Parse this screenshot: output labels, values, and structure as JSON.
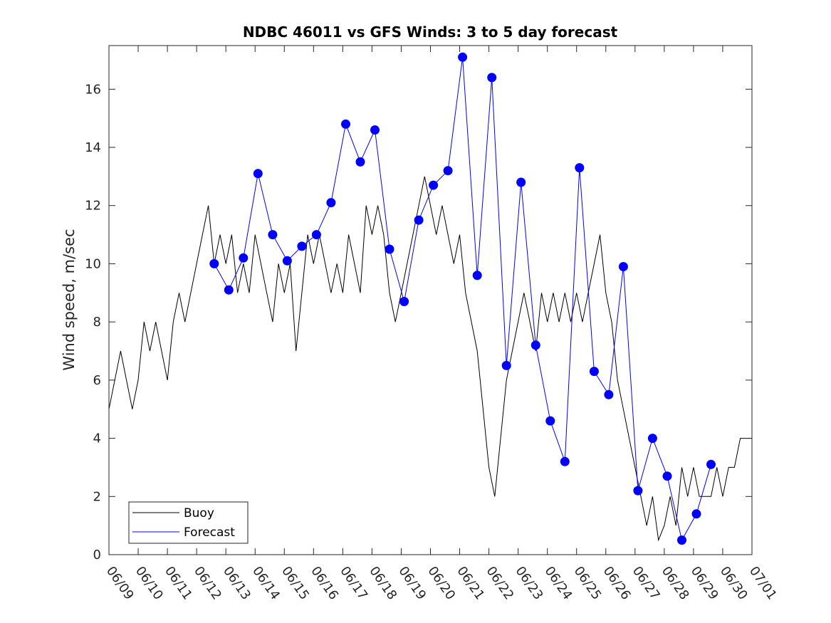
{
  "chart_data": {
    "type": "line",
    "title": "NDBC 46011 vs GFS Winds: 3 to 5 day forecast",
    "xlabel": "",
    "ylabel": "Wind speed, m/sec",
    "xlim": [
      "06/09",
      "07/01"
    ],
    "ylim": [
      0,
      17.5
    ],
    "x_ticks": [
      "06/09",
      "06/10",
      "06/11",
      "06/12",
      "06/13",
      "06/14",
      "06/15",
      "06/16",
      "06/17",
      "06/18",
      "06/19",
      "06/20",
      "06/21",
      "06/22",
      "06/23",
      "06/24",
      "06/25",
      "06/26",
      "06/27",
      "06/28",
      "06/29",
      "06/30",
      "07/01"
    ],
    "y_ticks": [
      0,
      2,
      4,
      6,
      8,
      10,
      12,
      14,
      16
    ],
    "grid": false,
    "legend": {
      "placement": "bottom-left",
      "entries": [
        "Buoy",
        "Forecast"
      ]
    },
    "colors": {
      "buoy": "#000000",
      "forecast": "#0000ff"
    },
    "series": [
      {
        "name": "Buoy",
        "x_day_offsets": [
          0.0,
          0.2,
          0.4,
          0.6,
          0.8,
          1.0,
          1.2,
          1.4,
          1.6,
          1.8,
          2.0,
          2.2,
          2.4,
          2.6,
          2.8,
          3.0,
          3.2,
          3.4,
          3.6,
          3.8,
          4.0,
          4.2,
          4.4,
          4.6,
          4.8,
          5.0,
          5.2,
          5.4,
          5.6,
          5.8,
          6.0,
          6.2,
          6.4,
          6.6,
          6.8,
          7.0,
          7.2,
          7.4,
          7.6,
          7.8,
          8.0,
          8.2,
          8.4,
          8.6,
          8.8,
          9.0,
          9.2,
          9.4,
          9.6,
          9.8,
          10.0,
          10.2,
          10.4,
          10.6,
          10.8,
          11.0,
          11.2,
          11.4,
          11.6,
          11.8,
          12.0,
          12.2,
          12.4,
          12.6,
          12.8,
          13.0,
          13.2,
          13.4,
          13.6,
          13.8,
          14.0,
          14.2,
          14.4,
          14.6,
          14.8,
          15.0,
          15.2,
          15.4,
          15.6,
          15.8,
          16.0,
          16.2,
          16.4,
          16.6,
          16.8,
          17.0,
          17.2,
          17.4,
          17.6,
          17.8,
          18.0,
          18.2,
          18.4,
          18.6,
          18.8,
          19.0,
          19.2,
          19.4,
          19.6,
          19.8,
          20.0,
          20.2,
          20.4,
          20.6,
          20.8,
          21.0,
          21.2,
          21.4,
          21.6,
          21.8,
          22.0
        ],
        "values": [
          5,
          6,
          7,
          6,
          5,
          6,
          8,
          7,
          8,
          7,
          6,
          8,
          9,
          8,
          9,
          10,
          11,
          12,
          10,
          11,
          10,
          11,
          9,
          10,
          9,
          11,
          10,
          9,
          8,
          10,
          9,
          10,
          7,
          9,
          11,
          10,
          11,
          10,
          9,
          10,
          9,
          11,
          10,
          9,
          12,
          11,
          12,
          11,
          9,
          8,
          9,
          10,
          11,
          12,
          13,
          12,
          11,
          12,
          11,
          10,
          11,
          9,
          8,
          7,
          5,
          3,
          2,
          4,
          6,
          7,
          8,
          9,
          8,
          7,
          9,
          8,
          9,
          8,
          9,
          8,
          9,
          8,
          9,
          10,
          11,
          9,
          8,
          6,
          5,
          4,
          3,
          2,
          1,
          2,
          0.5,
          1,
          2,
          1,
          3,
          2,
          3,
          2,
          2,
          2,
          3,
          2,
          3,
          3,
          4,
          4,
          4
        ]
      },
      {
        "name": "Forecast",
        "x_day_offsets": [
          3.6,
          4.1,
          4.6,
          5.1,
          5.6,
          6.1,
          6.6,
          7.1,
          7.6,
          8.1,
          8.6,
          9.1,
          9.6,
          10.1,
          10.6,
          11.1,
          11.6,
          12.1,
          12.6,
          13.1,
          13.6,
          14.1,
          14.6,
          15.1,
          15.6,
          16.1,
          16.6,
          17.1,
          17.6,
          18.1,
          18.6,
          19.1,
          19.6,
          20.1,
          20.6
        ],
        "values": [
          10,
          9.1,
          10.2,
          13.1,
          11,
          10.1,
          10.6,
          11,
          12.1,
          14.8,
          13.5,
          14.6,
          10.5,
          8.7,
          11.5,
          12.7,
          13.2,
          17.1,
          9.6,
          16.4,
          6.5,
          12.8,
          7.2,
          4.6,
          3.2,
          13.3,
          6.3,
          5.5,
          9.9,
          2.2,
          4,
          2.7,
          0.5,
          1.4,
          3.1
        ]
      }
    ]
  }
}
